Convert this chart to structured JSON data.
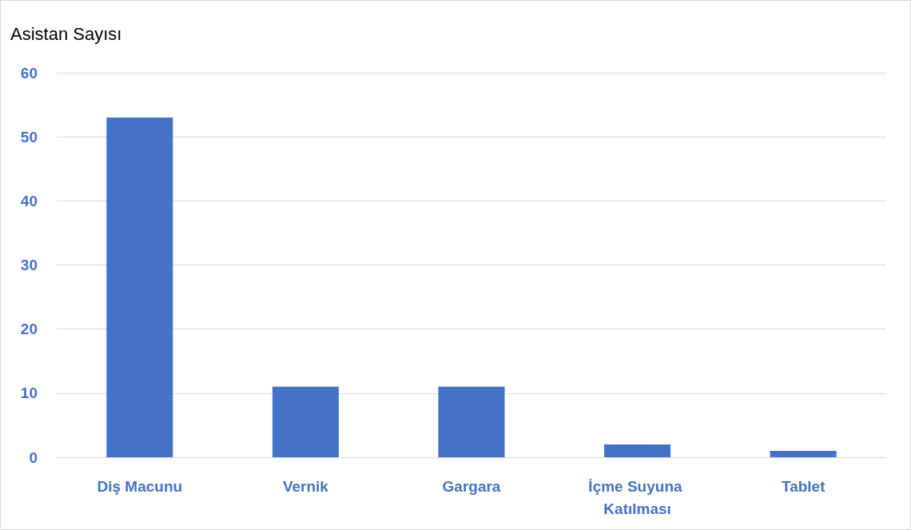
{
  "chart_data": {
    "type": "bar",
    "ylabel": "Asistan Sayısı",
    "categories": [
      "Diş Macunu",
      "Vernik",
      "Gargara",
      "İçme Suyuna Katılması",
      "Tablet"
    ],
    "values": [
      53,
      11,
      11,
      2,
      1
    ],
    "color": "#4472c4",
    "ylim": [
      0,
      60
    ],
    "yticks": [
      0,
      10,
      20,
      30,
      40,
      50,
      60
    ],
    "grid": "y"
  }
}
